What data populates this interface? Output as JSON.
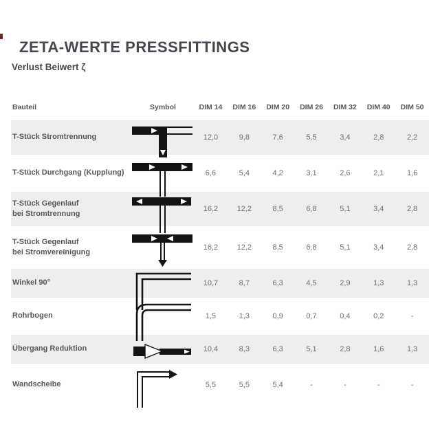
{
  "page": {
    "title": "ZETA-WERTE PRESSFITTINGS",
    "subtitle": "Verlust Beiwert ζ"
  },
  "colors": {
    "heading_text": "#43484e",
    "label_text": "#54585d",
    "value_text": "#6e6e6e",
    "row_alt_background": "#efeeee",
    "symbol_color": "#141414"
  },
  "table": {
    "headers": [
      "Bauteil",
      "Symbol",
      "DIM 14",
      "DIM 16",
      "DIM 20",
      "DIM 26",
      "DIM 32",
      "DIM 40",
      "DIM 50"
    ],
    "rows": [
      {
        "label_lines": [
          "T-Stück Stromtrennung"
        ],
        "symbol": "tee-flow-split-icon",
        "values": [
          "12,0",
          "9,8",
          "7,6",
          "5,5",
          "3,4",
          "2,8",
          "2,2"
        ]
      },
      {
        "label_lines": [
          "T-Stück Durchgang (Kupplung)"
        ],
        "symbol": "tee-straight-through-icon",
        "values": [
          "6,6",
          "5,4",
          "4,2",
          "3,1",
          "2,6",
          "2,1",
          "1,6"
        ]
      },
      {
        "label_lines": [
          "T-Stück Gegenlauf",
          "bei Stromtrennung"
        ],
        "symbol": "tee-counterflow-split-icon",
        "values": [
          "16,2",
          "12,2",
          "8,5",
          "6,8",
          "5,1",
          "3,4",
          "2,8"
        ]
      },
      {
        "label_lines": [
          "T-Stück Gegenlauf",
          "bei Stromvereinigung"
        ],
        "symbol": "tee-counterflow-merge-icon",
        "values": [
          "16,2",
          "12,2",
          "8,5",
          "6,8",
          "5,1",
          "3,4",
          "2,8"
        ]
      },
      {
        "label_lines": [
          "Winkel 90°"
        ],
        "symbol": "elbow-90-icon",
        "values": [
          "10,7",
          "8,7",
          "6,3",
          "4,5",
          "2,9",
          "1,3",
          "1,3"
        ]
      },
      {
        "label_lines": [
          "Rohrbogen"
        ],
        "symbol": "pipe-bend-icon",
        "values": [
          "1,5",
          "1,3",
          "0,9",
          "0,7",
          "0,4",
          "0,2",
          "-"
        ]
      },
      {
        "label_lines": [
          "Übergang Reduktion"
        ],
        "symbol": "reducer-icon",
        "values": [
          "10,4",
          "8,3",
          "6,3",
          "5,1",
          "2,8",
          "1,6",
          "1,3"
        ]
      },
      {
        "label_lines": [
          "Wandscheibe"
        ],
        "symbol": "wall-mount-elbow-icon",
        "values": [
          "5,5",
          "5,5",
          "5,4",
          "-",
          "-",
          "-",
          "-"
        ]
      }
    ]
  }
}
